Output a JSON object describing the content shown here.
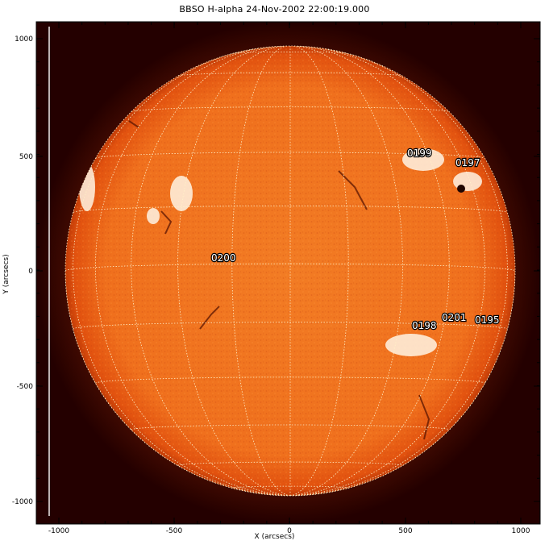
{
  "title": "BBSO H-alpha 24-Nov-2002 22:00:19.000",
  "xlabel": "X (arcsecs)",
  "ylabel": "Y (arcsecs)",
  "x_ticks": [
    "-1000",
    "-500",
    "0",
    "500",
    "1000"
  ],
  "y_ticks": [
    "1000",
    "500",
    "0",
    "-500",
    "-1000"
  ],
  "regions": [
    {
      "label": "0199"
    },
    {
      "label": "0197"
    },
    {
      "label": "0200"
    },
    {
      "label": "0201"
    },
    {
      "label": "0198"
    },
    {
      "label": "0195"
    }
  ],
  "colors": {
    "background": "#2a0000",
    "disk_center": "#f07a22",
    "disk_limb": "#e0500d",
    "grid": "#fff1c8",
    "labels": "#ffffff"
  }
}
